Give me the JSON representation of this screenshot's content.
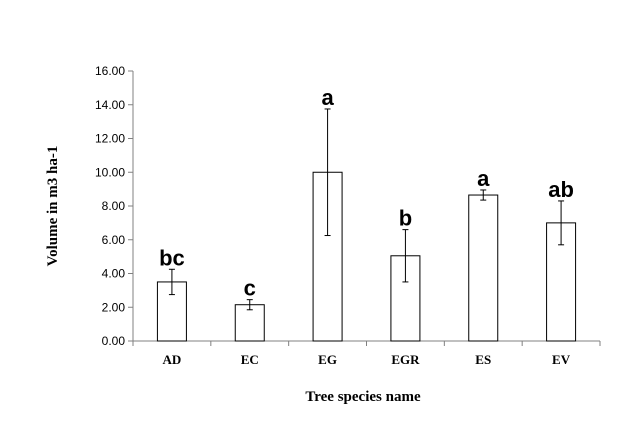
{
  "chart_data": {
    "type": "bar",
    "categories": [
      "AD",
      "EC",
      "EG",
      "EGR",
      "ES",
      "EV"
    ],
    "values": [
      3.5,
      2.15,
      10.0,
      5.05,
      8.65,
      7.0
    ],
    "error": [
      0.75,
      0.3,
      3.75,
      1.55,
      0.3,
      1.3
    ],
    "significance_letters": [
      "bc",
      "c",
      "a",
      "b",
      "a",
      "ab"
    ],
    "yticks": [
      "0.00",
      "2.00",
      "4.00",
      "6.00",
      "8.00",
      "10.00",
      "12.00",
      "14.00",
      "16.00"
    ],
    "ylim": [
      0,
      16
    ],
    "xlabel": "Tree species name",
    "ylabel": "Volume in m3 ha-1",
    "grid": false,
    "colors": {
      "bar_fill": "#ffffff",
      "bar_stroke": "#000000",
      "axis": "#808080"
    }
  }
}
